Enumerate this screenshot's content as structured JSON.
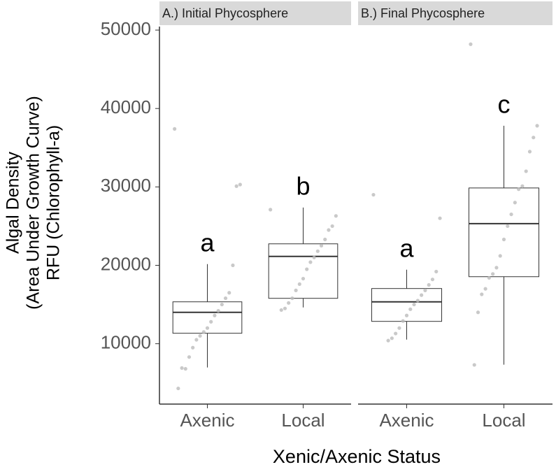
{
  "chart_data": {
    "type": "box",
    "y_label": [
      "Algal Density",
      "(Area Under Growth Curve)",
      "RFU (Chlorophyll-a)"
    ],
    "x_label": "Xenic/Axenic Status",
    "ylim": [
      2300,
      50450
    ],
    "yticks": [
      10000,
      20000,
      30000,
      40000,
      50000
    ],
    "panels": [
      {
        "title": "A.) Initial Phycosphere",
        "categories": [
          "Axenic",
          "Local"
        ],
        "letters": [
          "a",
          "b"
        ],
        "boxes": [
          {
            "min": 6970,
            "q1": 11335,
            "median": 14008,
            "q3": 15344,
            "max": 20155
          },
          {
            "min": 14630,
            "q1": 15790,
            "median": 21135,
            "q3": 22740,
            "max": 27370
          }
        ],
        "points": [
          [
            37400,
            30300,
            30100,
            20000,
            16500,
            15800,
            15000,
            14200,
            13600,
            12800,
            12000,
            11500,
            11000,
            10500,
            9500,
            8300,
            6800,
            6900,
            4300
          ],
          [
            27100,
            26300,
            25000,
            24500,
            23300,
            22500,
            21800,
            21000,
            20400,
            19500,
            18300,
            17600,
            16800,
            15800,
            15200,
            14500,
            14300
          ]
        ]
      },
      {
        "title": "B.) Final Phycosphere",
        "categories": [
          "Axenic",
          "Local"
        ],
        "letters": [
          "a",
          "c"
        ],
        "boxes": [
          {
            "min": 10530,
            "q1": 12850,
            "median": 15344,
            "q3": 17040,
            "max": 19440
          },
          {
            "min": 7325,
            "q1": 18550,
            "median": 25320,
            "q3": 29865,
            "max": 37795
          }
        ],
        "points": [
          [
            29000,
            26000,
            19200,
            18200,
            17500,
            16800,
            16200,
            15500,
            15000,
            14400,
            13600,
            12900,
            12000,
            11300,
            10700,
            10400
          ],
          [
            48200,
            37800,
            36300,
            34500,
            32000,
            30100,
            29700,
            28000,
            26500,
            25000,
            23300,
            21200,
            19700,
            18900,
            18400,
            17000,
            16300,
            14000,
            7300
          ]
        ]
      }
    ]
  }
}
